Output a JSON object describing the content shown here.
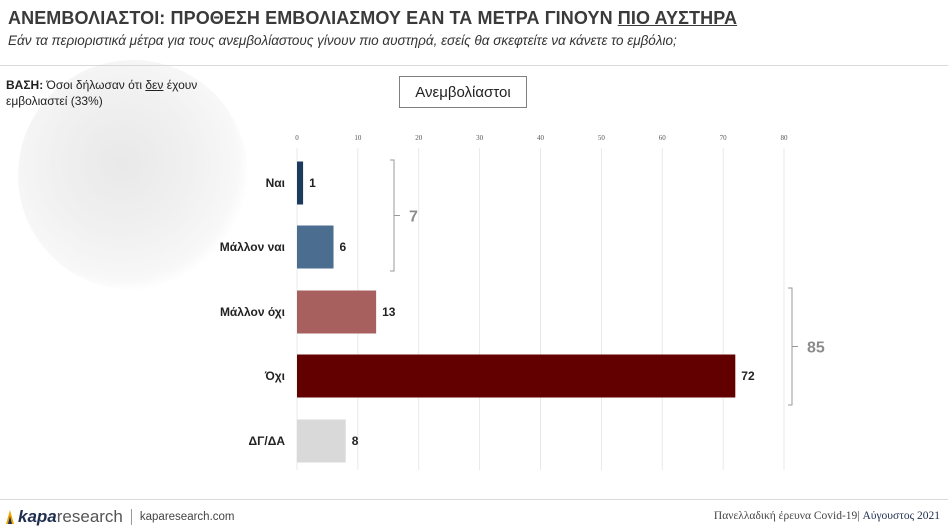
{
  "header": {
    "title_main": "ΑΝΕΜΒΟΛΙΑΣΤΟΙ: ΠΡΟΘΕΣΗ ΕΜΒΟΛΙΑΣΜΟΥ ΕΑΝ ΤΑ ΜΕΤΡΑ ΓΙΝΟΥΝ ",
    "title_emph": "ΠΙΟ ΑΥΣΤΗΡΑ",
    "subtitle": "Εάν τα περιοριστικά μέτρα για τους ανεμβολίαστους γίνουν πιο αυστηρά, εσείς θα σκεφτείτε να κάνετε το εμβόλιο;"
  },
  "base": {
    "label": "ΒΑΣΗ:",
    "text_pre": " Όσοι δήλωσαν ότι ",
    "text_emph": "δεν",
    "text_post": " έχουν εμβολιαστεί (33%)"
  },
  "legend": {
    "label": "Ανεμβολίαστοι"
  },
  "chart_data": {
    "type": "bar",
    "orientation": "horizontal",
    "categories": [
      "Ναι",
      "Μάλλον ναι",
      "Μάλλον όχι",
      "Όχι",
      "ΔΓ/ΔΑ"
    ],
    "series": [
      {
        "name": "Ανεμβολίαστοι",
        "values": [
          1,
          6,
          13,
          72,
          8
        ]
      }
    ],
    "colors": [
      "#1c3a5c",
      "#4b6e90",
      "#a8605f",
      "#620000",
      "#d9d9d9"
    ],
    "xlim": [
      0,
      80
    ],
    "xticks": [
      0,
      10,
      20,
      30,
      40,
      50,
      60,
      70,
      80
    ],
    "grid": true,
    "brackets": [
      {
        "categories": [
          "Ναι",
          "Μάλλον ναι"
        ],
        "total": "7",
        "side": "right of bars"
      },
      {
        "categories": [
          "Μάλλον όχι",
          "Όχι"
        ],
        "total": "85",
        "side": "right of bars"
      }
    ]
  },
  "footer": {
    "logo_bold": "kapa",
    "logo_light": "research",
    "url": "kaparesearch.com",
    "note": "Πανελλαδική έρευνα Covid-19| ",
    "note_date": "Αύγουστος 2021"
  }
}
